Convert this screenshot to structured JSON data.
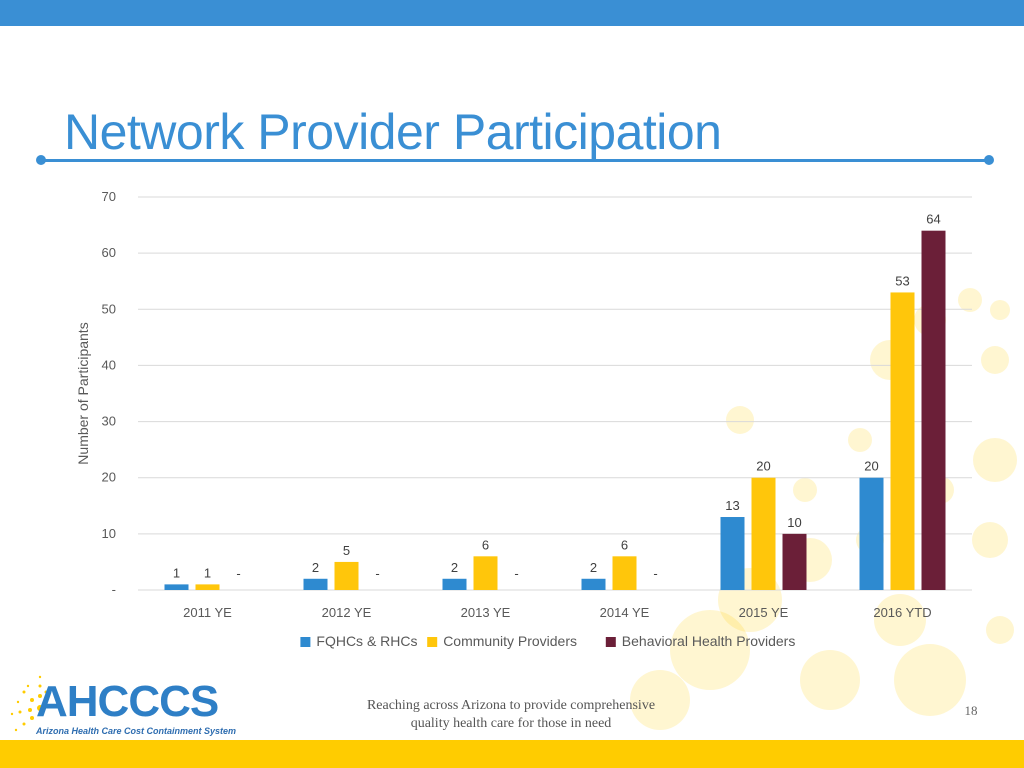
{
  "slide": {
    "title": "Network Provider Participation",
    "footer_line1": "Reaching across Arizona to provide comprehensive",
    "footer_line2": "quality health care for those in need",
    "page_number": "18",
    "logo_text": "AHCCCS",
    "logo_subtitle": "Arizona Health Care Cost Containment System"
  },
  "colors": {
    "accent_blue": "#3a8fd4",
    "accent_yellow": "#ffcc00",
    "series_fqhc": "#2e8ad0",
    "series_community": "#ffc60b",
    "series_behavioral": "#6b1f38"
  },
  "chart_data": {
    "type": "bar",
    "title": "",
    "xlabel": "",
    "ylabel": "Number of Participants",
    "ylim": [
      0,
      70
    ],
    "y_ticks": [
      0,
      10,
      20,
      30,
      40,
      50,
      60,
      70
    ],
    "y_tick_labels": [
      "-",
      "10",
      "20",
      "30",
      "40",
      "50",
      "60",
      "70"
    ],
    "grid": true,
    "legend_position": "bottom",
    "categories": [
      "2011 YE",
      "2012 YE",
      "2013 YE",
      "2014 YE",
      "2015 YE",
      "2016 YTD"
    ],
    "series": [
      {
        "name": "FQHCs & RHCs",
        "color": "#2e8ad0",
        "values": [
          1,
          2,
          2,
          2,
          13,
          20
        ],
        "labels": [
          "1",
          "2",
          "2",
          "2",
          "13",
          "20"
        ]
      },
      {
        "name": "Community Providers",
        "color": "#ffc60b",
        "values": [
          1,
          5,
          6,
          6,
          20,
          53
        ],
        "labels": [
          "1",
          "5",
          "6",
          "6",
          "20",
          "53"
        ]
      },
      {
        "name": "Behavioral Health Providers",
        "color": "#6b1f38",
        "values": [
          0,
          0,
          0,
          0,
          10,
          64
        ],
        "labels": [
          "-",
          "-",
          "-",
          "-",
          "10",
          "64"
        ]
      }
    ]
  }
}
